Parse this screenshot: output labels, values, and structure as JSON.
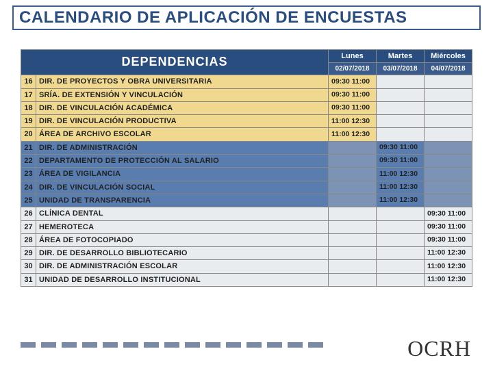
{
  "title": "CALENDARIO DE APLICACIÓN DE ENCUESTAS",
  "headers": {
    "dependencias": "DEPENDENCIAS",
    "days": [
      "Lunes",
      "Martes",
      "Miércoles"
    ],
    "dates": [
      "02/07/2018",
      "03/07/2018",
      "04/07/2018"
    ]
  },
  "groups": [
    {
      "row_bg": "#f0d98f",
      "cell_bg_active": "#f0d98f",
      "cell_bg_inactive": "#e8ecef",
      "active_col": 0,
      "rows": [
        {
          "n": "16",
          "dep": "DIR. DE PROYECTOS Y OBRA UNIVERSITARIA",
          "time": "09:30 11:00"
        },
        {
          "n": "17",
          "dep": "SRÍA. DE EXTENSIÓN Y VINCULACIÓN",
          "time": "09:30 11:00"
        },
        {
          "n": "18",
          "dep": "DIR. DE VINCULACIÓN ACADÉMICA",
          "time": "09:30 11:00"
        },
        {
          "n": "19",
          "dep": "DIR. DE VINCULACIÓN PRODUCTIVA",
          "time": "11:00 12:30"
        },
        {
          "n": "20",
          "dep": "ÁREA DE ARCHIVO ESCOLAR",
          "time": "11:00 12:30"
        }
      ]
    },
    {
      "row_bg": "#5a7db0",
      "cell_bg_active": "#5a7db0",
      "cell_bg_inactive": "#7c93b5",
      "active_col": 1,
      "rows": [
        {
          "n": "21",
          "dep": "DIR. DE ADMINISTRACIÓN",
          "time": "09:30 11:00"
        },
        {
          "n": "22",
          "dep": "DEPARTAMENTO DE PROTECCIÓN AL SALARIO",
          "time": "09:30 11:00"
        },
        {
          "n": "23",
          "dep": "ÁREA DE VIGILANCIA",
          "time": "11:00 12:30"
        },
        {
          "n": "24",
          "dep": "DIR. DE VINCULACIÓN SOCIAL",
          "time": "11:00 12:30"
        },
        {
          "n": "25",
          "dep": "UNIDAD DE TRANSPARENCIA",
          "time": "11:00 12:30"
        }
      ]
    },
    {
      "row_bg": "#e8ecef",
      "cell_bg_active": "#e8ecef",
      "cell_bg_inactive": "#e8ecef",
      "active_col": 2,
      "rows": [
        {
          "n": "26",
          "dep": "CLÍNICA DENTAL",
          "time": "09:30 11:00"
        },
        {
          "n": "27",
          "dep": "HEMEROTECA",
          "time": "09:30 11:00"
        },
        {
          "n": "28",
          "dep": "ÁREA DE FOTOCOPIADO",
          "time": "09:30 11:00"
        },
        {
          "n": "29",
          "dep": "DIR. DE DESARROLLO BIBLIOTECARIO",
          "time": "11:00 12:30"
        },
        {
          "n": "30",
          "dep": "DIR. DE ADMINISTRACIÓN ESCOLAR",
          "time": "11:00 12:30"
        },
        {
          "n": "31",
          "dep": "UNIDAD DE DESARROLLO INSTITUCIONAL",
          "time": "11:00 12:30"
        }
      ]
    }
  ],
  "dash_count": 15,
  "logo_text": "OCRH",
  "colors": {
    "title_border": "#3a5c8f",
    "title_text": "#2a4d80",
    "header_bg": "#2a4d80",
    "dash": "#7a8aa5"
  }
}
